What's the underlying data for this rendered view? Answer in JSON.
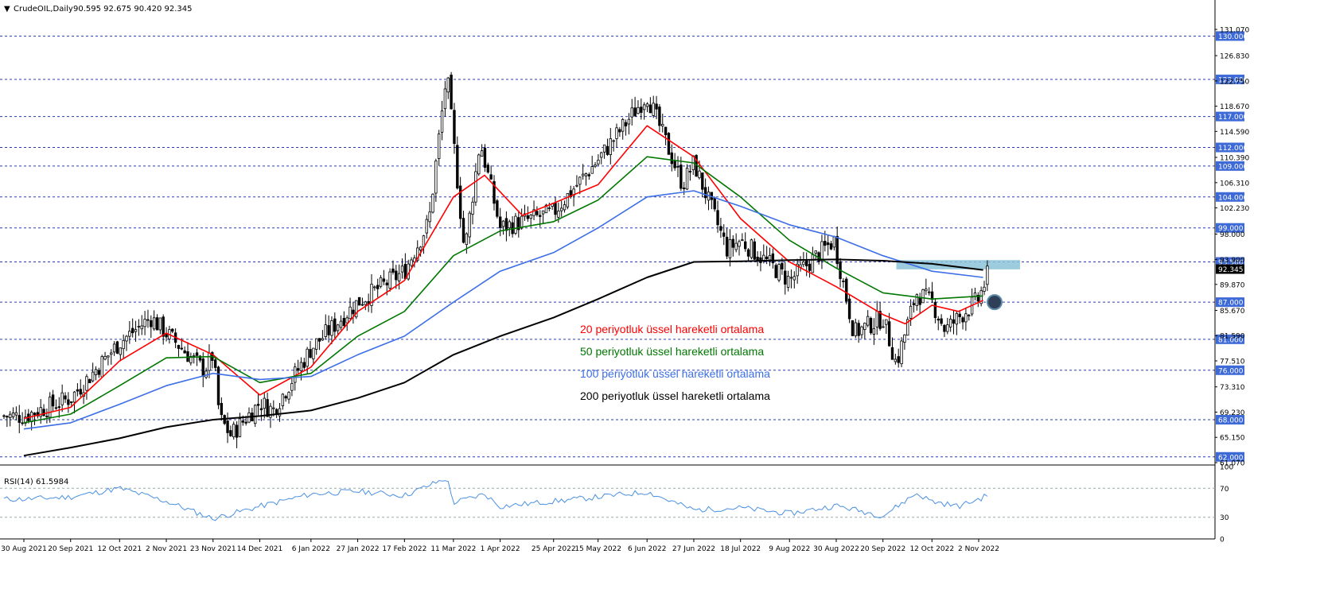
{
  "header": {
    "arrow": "▼",
    "symbol": "CrudeOIL,Daily",
    "ohlc": "90.595 92.675 90.420 92.345"
  },
  "rsi_header": "RSI(14) 61.5984",
  "colors": {
    "ema20": "#ff0000",
    "ema50": "#007700",
    "ema100": "#3c6ee6",
    "ema200": "#000000",
    "rsi": "#4a90e2",
    "hline": "#2a3ab8",
    "zone": "#8cc3d9",
    "tag": "#3d6ad6"
  },
  "chart_data": [
    {
      "type": "candlestick",
      "title": "CrudeOIL,Daily",
      "ohlc_last": {
        "open": 90.595,
        "high": 92.675,
        "low": 90.42,
        "close": 92.345
      },
      "ylim": [
        61.07,
        133.0
      ],
      "y_ticks": [
        "131.070",
        "126.830",
        "122.750",
        "118.670",
        "114.590",
        "110.390",
        "106.310",
        "102.230",
        "98.000",
        "93.900",
        "89.870",
        "85.670",
        "81.590",
        "77.510",
        "73.310",
        "69.230",
        "65.150",
        "61.070"
      ],
      "x_ticks": [
        "30 Aug 2021",
        "20 Sep 2021",
        "12 Oct 2021",
        "2 Nov 2021",
        "23 Nov 2021",
        "14 Dec 2021",
        "6 Jan 2022",
        "27 Jan 2022",
        "17 Feb 2022",
        "11 Mar 2022",
        "1 Apr 2022",
        "25 Apr 2022",
        "15 May 2022",
        "6 Jun 2022",
        "27 Jun 2022",
        "18 Jul 2022",
        "9 Aug 2022",
        "30 Aug 2022",
        "20 Sep 2022",
        "12 Oct 2022",
        "2 Nov 2022"
      ],
      "horizontal_levels": [
        "130.000",
        "123.000",
        "117.000",
        "112.000",
        "109.000",
        "104.000",
        "99.000",
        "93.500",
        "87.000",
        "81.000",
        "76.000",
        "68.000",
        "62.000"
      ],
      "current_price_label": "92.345",
      "resistance_zone": [
        92.3,
        93.8
      ],
      "close_path": [
        {
          "x": "30 Aug 2021",
          "y": 68.6
        },
        {
          "x": "20 Sep 2021",
          "y": 71.5
        },
        {
          "x": "12 Oct 2021",
          "y": 80.5
        },
        {
          "x": "26 Oct 2021",
          "y": 84.5
        },
        {
          "x": "2 Nov 2021",
          "y": 82.0
        },
        {
          "x": "19 Nov 2021",
          "y": 76.0
        },
        {
          "x": "23 Nov 2021",
          "y": 78.5
        },
        {
          "x": "26 Nov 2021",
          "y": 68.2
        },
        {
          "x": "1 Dec 2021",
          "y": 65.5
        },
        {
          "x": "14 Dec 2021",
          "y": 70.8
        },
        {
          "x": "20 Dec 2021",
          "y": 69.5
        },
        {
          "x": "6 Jan 2022",
          "y": 79.5
        },
        {
          "x": "27 Jan 2022",
          "y": 87.0
        },
        {
          "x": "17 Feb 2022",
          "y": 92.0
        },
        {
          "x": "28 Feb 2022",
          "y": 100.0
        },
        {
          "x": "8 Mar 2022",
          "y": 124.0
        },
        {
          "x": "16 Mar 2022",
          "y": 95.0
        },
        {
          "x": "23 Mar 2022",
          "y": 113.0
        },
        {
          "x": "1 Apr 2022",
          "y": 99.0
        },
        {
          "x": "25 Apr 2022",
          "y": 101.5
        },
        {
          "x": "15 May 2022",
          "y": 110.0
        },
        {
          "x": "6 Jun 2022",
          "y": 120.5
        },
        {
          "x": "22 Jun 2022",
          "y": 106.0
        },
        {
          "x": "27 Jun 2022",
          "y": 109.5
        },
        {
          "x": "12 Jul 2022",
          "y": 95.5
        },
        {
          "x": "18 Jul 2022",
          "y": 97.0
        },
        {
          "x": "9 Aug 2022",
          "y": 90.5
        },
        {
          "x": "29 Aug 2022",
          "y": 97.0
        },
        {
          "x": "7 Sep 2022",
          "y": 82.0
        },
        {
          "x": "20 Sep 2022",
          "y": 84.5
        },
        {
          "x": "26 Sep 2022",
          "y": 77.0
        },
        {
          "x": "5 Oct 2022",
          "y": 88.5
        },
        {
          "x": "12 Oct 2022",
          "y": 87.0
        },
        {
          "x": "18 Oct 2022",
          "y": 82.5
        },
        {
          "x": "2 Nov 2022",
          "y": 87.5
        },
        {
          "x": "7 Nov 2022",
          "y": 92.345
        }
      ],
      "series": [
        {
          "name": "20 periyotluk üssel hareketli ortalama",
          "color": "#ff0000",
          "points": [
            {
              "x": "30 Aug 2021",
              "y": 68.2
            },
            {
              "x": "20 Sep 2021",
              "y": 70.0
            },
            {
              "x": "12 Oct 2021",
              "y": 77.5
            },
            {
              "x": "2 Nov 2021",
              "y": 82.0
            },
            {
              "x": "23 Nov 2021",
              "y": 78.5
            },
            {
              "x": "14 Dec 2021",
              "y": 72.0
            },
            {
              "x": "6 Jan 2022",
              "y": 76.5
            },
            {
              "x": "27 Jan 2022",
              "y": 85.5
            },
            {
              "x": "17 Feb 2022",
              "y": 90.5
            },
            {
              "x": "11 Mar 2022",
              "y": 104.0
            },
            {
              "x": "25 Mar 2022",
              "y": 107.5
            },
            {
              "x": "11 Apr 2022",
              "y": 101.0
            },
            {
              "x": "25 Apr 2022",
              "y": 103.0
            },
            {
              "x": "15 May 2022",
              "y": 106.0
            },
            {
              "x": "6 Jun 2022",
              "y": 115.5
            },
            {
              "x": "27 Jun 2022",
              "y": 110.5
            },
            {
              "x": "18 Jul 2022",
              "y": 100.5
            },
            {
              "x": "9 Aug 2022",
              "y": 93.5
            },
            {
              "x": "30 Aug 2022",
              "y": 89.5
            },
            {
              "x": "20 Sep 2022",
              "y": 85.0
            },
            {
              "x": "30 Sep 2022",
              "y": 83.5
            },
            {
              "x": "12 Oct 2022",
              "y": 86.5
            },
            {
              "x": "24 Oct 2022",
              "y": 85.5
            },
            {
              "x": "4 Nov 2022",
              "y": 87.3
            }
          ]
        },
        {
          "name": "50 periyotluk üssel hareketli ortalama",
          "color": "#007700",
          "points": [
            {
              "x": "30 Aug 2021",
              "y": 67.5
            },
            {
              "x": "20 Sep 2021",
              "y": 68.9
            },
            {
              "x": "12 Oct 2021",
              "y": 73.5
            },
            {
              "x": "2 Nov 2021",
              "y": 78.0
            },
            {
              "x": "23 Nov 2021",
              "y": 78.2
            },
            {
              "x": "14 Dec 2021",
              "y": 74.0
            },
            {
              "x": "6 Jan 2022",
              "y": 75.5
            },
            {
              "x": "27 Jan 2022",
              "y": 81.5
            },
            {
              "x": "17 Feb 2022",
              "y": 85.5
            },
            {
              "x": "11 Mar 2022",
              "y": 94.5
            },
            {
              "x": "1 Apr 2022",
              "y": 98.5
            },
            {
              "x": "25 Apr 2022",
              "y": 100.0
            },
            {
              "x": "15 May 2022",
              "y": 103.5
            },
            {
              "x": "6 Jun 2022",
              "y": 110.5
            },
            {
              "x": "27 Jun 2022",
              "y": 109.5
            },
            {
              "x": "18 Jul 2022",
              "y": 104.0
            },
            {
              "x": "9 Aug 2022",
              "y": 97.0
            },
            {
              "x": "30 Aug 2022",
              "y": 92.5
            },
            {
              "x": "20 Sep 2022",
              "y": 88.5
            },
            {
              "x": "12 Oct 2022",
              "y": 87.5
            },
            {
              "x": "4 Nov 2022",
              "y": 88.0
            }
          ]
        },
        {
          "name": "100 periyotluk üssel hareketli ortalama",
          "color": "#3c6ee6",
          "points": [
            {
              "x": "30 Aug 2021",
              "y": 66.5
            },
            {
              "x": "20 Sep 2021",
              "y": 67.5
            },
            {
              "x": "12 Oct 2021",
              "y": 70.5
            },
            {
              "x": "2 Nov 2021",
              "y": 73.5
            },
            {
              "x": "23 Nov 2021",
              "y": 75.5
            },
            {
              "x": "14 Dec 2021",
              "y": 74.5
            },
            {
              "x": "6 Jan 2022",
              "y": 75.0
            },
            {
              "x": "27 Jan 2022",
              "y": 78.5
            },
            {
              "x": "17 Feb 2022",
              "y": 81.5
            },
            {
              "x": "11 Mar 2022",
              "y": 87.0
            },
            {
              "x": "1 Apr 2022",
              "y": 92.0
            },
            {
              "x": "25 Apr 2022",
              "y": 95.0
            },
            {
              "x": "15 May 2022",
              "y": 99.0
            },
            {
              "x": "6 Jun 2022",
              "y": 104.0
            },
            {
              "x": "27 Jun 2022",
              "y": 105.0
            },
            {
              "x": "18 Jul 2022",
              "y": 102.5
            },
            {
              "x": "9 Aug 2022",
              "y": 99.5
            },
            {
              "x": "30 Aug 2022",
              "y": 97.5
            },
            {
              "x": "20 Sep 2022",
              "y": 94.5
            },
            {
              "x": "12 Oct 2022",
              "y": 92.0
            },
            {
              "x": "4 Nov 2022",
              "y": 91.0
            }
          ]
        },
        {
          "name": "200 periyotluk üssel hareketli ortalama",
          "color": "#000000",
          "points": [
            {
              "x": "30 Aug 2021",
              "y": 62.2
            },
            {
              "x": "20 Sep 2021",
              "y": 63.5
            },
            {
              "x": "12 Oct 2021",
              "y": 65.0
            },
            {
              "x": "2 Nov 2021",
              "y": 66.8
            },
            {
              "x": "23 Nov 2021",
              "y": 68.0
            },
            {
              "x": "14 Dec 2021",
              "y": 68.6
            },
            {
              "x": "6 Jan 2022",
              "y": 69.5
            },
            {
              "x": "27 Jan 2022",
              "y": 71.5
            },
            {
              "x": "17 Feb 2022",
              "y": 74.0
            },
            {
              "x": "11 Mar 2022",
              "y": 78.5
            },
            {
              "x": "1 Apr 2022",
              "y": 81.5
            },
            {
              "x": "25 Apr 2022",
              "y": 84.5
            },
            {
              "x": "15 May 2022",
              "y": 87.5
            },
            {
              "x": "6 Jun 2022",
              "y": 91.0
            },
            {
              "x": "27 Jun 2022",
              "y": 93.5
            },
            {
              "x": "18 Jul 2022",
              "y": 93.6
            },
            {
              "x": "9 Aug 2022",
              "y": 93.8
            },
            {
              "x": "30 Aug 2022",
              "y": 93.9
            },
            {
              "x": "20 Sep 2022",
              "y": 93.7
            },
            {
              "x": "12 Oct 2022",
              "y": 93.2
            },
            {
              "x": "4 Nov 2022",
              "y": 92.2
            }
          ]
        }
      ],
      "legend": [
        {
          "text": "20 periyotluk üssel hareketli ortalama",
          "color": "#ff0000"
        },
        {
          "text": "50 periyotluk üssel hareketli ortalama",
          "color": "#007700"
        },
        {
          "text": "100 periyotluk üssel hareketli ortalama",
          "color": "#3c6ee6"
        },
        {
          "text": "200 periyotluk üssel hareketli ortalama",
          "color": "#000000"
        }
      ],
      "grid": false
    },
    {
      "type": "line",
      "title": "RSI(14) 61.5984",
      "ylim": [
        0,
        100
      ],
      "y_ticks": [
        "100",
        "70",
        "30",
        "0"
      ],
      "levels": [
        70,
        30
      ],
      "series": [
        {
          "color": "#4a90e2",
          "points": [
            {
              "x": "30 Aug 2021",
              "y": 55
            },
            {
              "x": "20 Sep 2021",
              "y": 58
            },
            {
              "x": "12 Oct 2021",
              "y": 70
            },
            {
              "x": "2 Nov 2021",
              "y": 52
            },
            {
              "x": "23 Nov 2021",
              "y": 28
            },
            {
              "x": "14 Dec 2021",
              "y": 45
            },
            {
              "x": "6 Jan 2022",
              "y": 62
            },
            {
              "x": "27 Jan 2022",
              "y": 66
            },
            {
              "x": "17 Feb 2022",
              "y": 60
            },
            {
              "x": "8 Mar 2022",
              "y": 84
            },
            {
              "x": "11 Mar 2022",
              "y": 50
            },
            {
              "x": "25 Mar 2022",
              "y": 62
            },
            {
              "x": "1 Apr 2022",
              "y": 45
            },
            {
              "x": "25 Apr 2022",
              "y": 52
            },
            {
              "x": "15 May 2022",
              "y": 58
            },
            {
              "x": "6 Jun 2022",
              "y": 65
            },
            {
              "x": "27 Jun 2022",
              "y": 40
            },
            {
              "x": "18 Jul 2022",
              "y": 43
            },
            {
              "x": "9 Aug 2022",
              "y": 35
            },
            {
              "x": "30 Aug 2022",
              "y": 46
            },
            {
              "x": "20 Sep 2022",
              "y": 32
            },
            {
              "x": "5 Oct 2022",
              "y": 63
            },
            {
              "x": "12 Oct 2022",
              "y": 52
            },
            {
              "x": "24 Oct 2022",
              "y": 45
            },
            {
              "x": "2 Nov 2022",
              "y": 55
            },
            {
              "x": "7 Nov 2022",
              "y": 61.6
            }
          ]
        }
      ]
    }
  ]
}
